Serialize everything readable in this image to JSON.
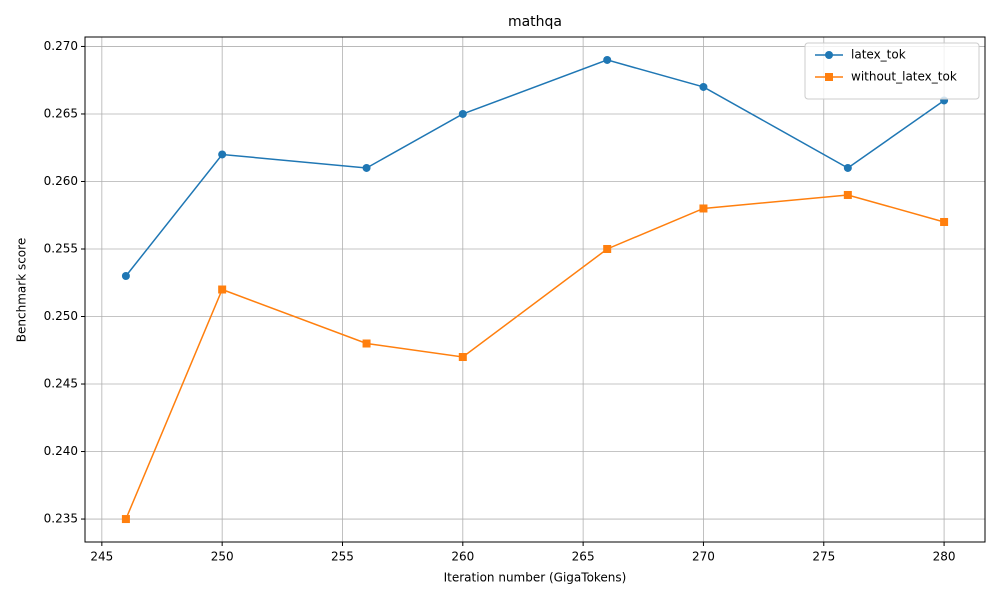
{
  "chart_data": {
    "type": "line",
    "title": "mathqa",
    "x_label": "Iteration number (GigaTokens)",
    "y_label": "Benchmark score",
    "x": [
      246,
      250,
      256,
      260,
      266,
      270,
      276,
      280
    ],
    "series": [
      {
        "name": "latex_tok",
        "color": "#1f77b4",
        "marker": "circle",
        "values": [
          0.253,
          0.262,
          0.261,
          0.265,
          0.269,
          0.267,
          0.261,
          0.266
        ]
      },
      {
        "name": "without_latex_tok",
        "color": "#ff7f0e",
        "marker": "square",
        "values": [
          0.235,
          0.252,
          0.248,
          0.247,
          0.255,
          0.258,
          0.259,
          0.257
        ]
      }
    ],
    "xlim": [
      244.3,
      281.7
    ],
    "xticks": [
      245,
      250,
      255,
      260,
      265,
      270,
      275,
      280
    ],
    "ylim": [
      0.2333,
      0.2707
    ],
    "yticks": [
      0.235,
      {
        "value": 0.24,
        "label": "0.240"
      },
      0.245,
      {
        "value": 0.25,
        "label": "0.250"
      },
      0.255,
      {
        "value": 0.26,
        "label": "0.260"
      },
      0.265,
      {
        "value": 0.27,
        "label": "0.270"
      }
    ],
    "grid": true,
    "legend": "upper-right"
  }
}
